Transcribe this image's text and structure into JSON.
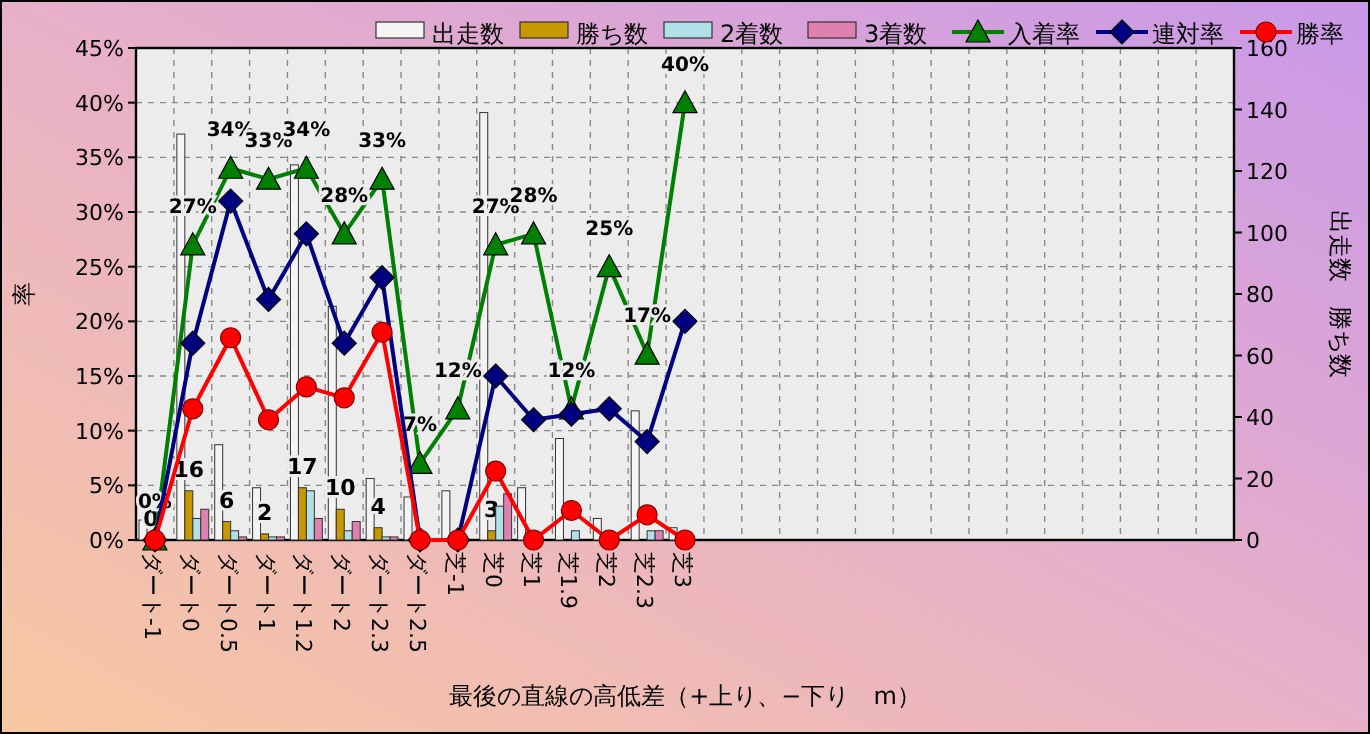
{
  "chart_data": {
    "type": "bar",
    "xlabel": "最後の直線の高低差（+上り、−下り　m）",
    "ylabel": "率",
    "y2label": "出走数　勝ち数",
    "categories": [
      "ダート-1",
      "ダート0",
      "ダート0.5",
      "ダート1",
      "ダート1.2",
      "ダート2",
      "ダート2.3",
      "ダート2.5",
      "芝-1",
      "芝0",
      "芝1",
      "芝1.9",
      "芝2",
      "芝2.3",
      "芝3",
      null,
      null,
      null,
      null,
      null,
      null,
      null,
      null,
      null,
      null,
      null,
      null,
      null,
      null
    ],
    "series": [
      {
        "name": "出走数",
        "axis": "y2",
        "color": "#f4f4f4",
        "values": [
          6.5,
          132,
          31,
          17,
          122,
          76,
          20,
          14,
          16,
          139,
          17,
          33,
          7,
          42,
          4,
          null,
          null,
          null,
          null,
          null,
          null,
          null,
          null,
          null,
          null,
          null,
          null,
          null,
          null
        ]
      },
      {
        "name": "勝ち数",
        "axis": "y2",
        "color": "#c89800",
        "values": [
          0,
          16,
          6,
          2,
          17,
          10,
          4,
          0,
          0,
          3,
          0,
          0,
          0,
          0,
          0,
          null,
          null,
          null,
          null,
          null,
          null,
          null,
          null,
          null,
          null,
          null,
          null,
          null,
          null
        ],
        "value_labels": [
          "0",
          "16",
          "6",
          "2",
          "17",
          "10",
          "4",
          null,
          null,
          "3",
          null,
          null,
          null,
          null,
          null,
          null,
          null,
          null,
          null,
          null,
          null,
          null,
          null,
          null,
          null,
          null,
          null,
          null,
          null
        ]
      },
      {
        "name": "2着数",
        "axis": "y2",
        "color": "#b0e0e8",
        "values": [
          0,
          7,
          3,
          1,
          16,
          3,
          1,
          0,
          0,
          11,
          0,
          3,
          0,
          3,
          0,
          null,
          null,
          null,
          null,
          null,
          null,
          null,
          null,
          null,
          null,
          null,
          null,
          null,
          null
        ]
      },
      {
        "name": "3着数",
        "axis": "y2",
        "color": "#e080b0",
        "values": [
          0,
          10,
          1,
          1,
          7,
          6,
          1,
          0,
          0,
          15,
          0,
          0,
          0,
          3,
          0,
          null,
          null,
          null,
          null,
          null,
          null,
          null,
          null,
          null,
          null,
          null,
          null,
          null,
          null
        ]
      },
      {
        "name": "入着率",
        "type": "line",
        "axis": "y",
        "marker": "triangle",
        "color": "#008000",
        "values": [
          0,
          27,
          34,
          33,
          34,
          28,
          33,
          7,
          12,
          27,
          28,
          12,
          25,
          17,
          40,
          null,
          null,
          null,
          null,
          null,
          null,
          null,
          null,
          null,
          null,
          null,
          null,
          null,
          null
        ],
        "value_labels": [
          "0%",
          "27%",
          "34%",
          "33%",
          "34%",
          "28%",
          "33%",
          "7%",
          "12%",
          "27%",
          "28%",
          "12%",
          "25%",
          "17%",
          "40%",
          null,
          null,
          null,
          null,
          null,
          null,
          null,
          null,
          null,
          null,
          null,
          null,
          null,
          null
        ]
      },
      {
        "name": "連対率",
        "type": "line",
        "axis": "y",
        "marker": "diamond",
        "color": "#000080",
        "values": [
          0,
          18,
          31,
          22,
          28,
          18,
          24,
          0,
          0,
          15,
          11,
          11.5,
          12,
          9,
          20,
          null,
          null,
          null,
          null,
          null,
          null,
          null,
          null,
          null,
          null,
          null,
          null,
          null,
          null
        ]
      },
      {
        "name": "勝率",
        "type": "line",
        "axis": "y",
        "marker": "circle",
        "color": "#ff0000",
        "values": [
          0,
          12,
          18.5,
          11,
          14,
          13,
          19,
          0,
          0,
          6.3,
          0,
          2.7,
          0,
          2.3,
          0,
          null,
          null,
          null,
          null,
          null,
          null,
          null,
          null,
          null,
          null,
          null,
          null,
          null,
          null
        ]
      }
    ],
    "ylim": [
      0,
      45
    ],
    "yticks": [
      {
        "value": 0,
        "label": "0%"
      },
      {
        "value": 5,
        "label": "5%"
      },
      {
        "value": 10,
        "label": "10%"
      },
      {
        "value": 15,
        "label": "15%"
      },
      {
        "value": 20,
        "label": "20%"
      },
      {
        "value": 25,
        "label": "25%"
      },
      {
        "value": 30,
        "label": "30%"
      },
      {
        "value": 35,
        "label": "35%"
      },
      {
        "value": 40,
        "label": "40%"
      },
      {
        "value": 45,
        "label": "45%"
      }
    ],
    "y2lim": [
      0,
      160
    ],
    "y2ticks": [
      0,
      20,
      40,
      60,
      80,
      100,
      120,
      140,
      160
    ],
    "grid": true,
    "legend": "top",
    "line_style": "solid"
  }
}
